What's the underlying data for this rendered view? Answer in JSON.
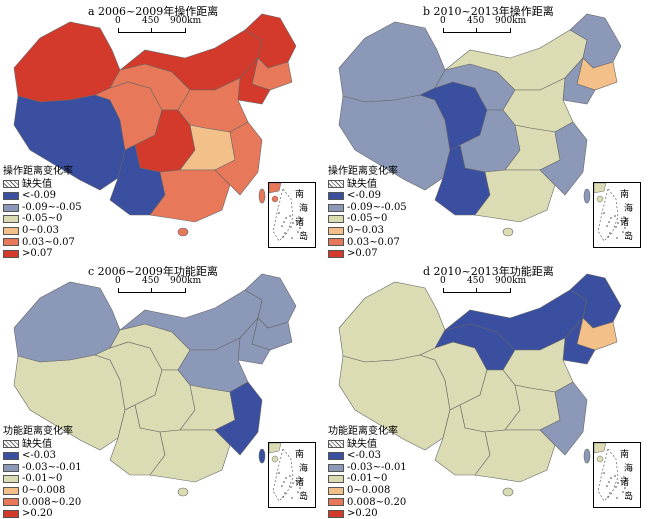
{
  "panels": [
    {
      "id": "a",
      "title": "a 2006~2009年操作距离",
      "legend_title": "操作距离变化率",
      "legend": [
        {
          "label": "缺失值",
          "color": "hatch"
        },
        {
          "label": "<-0.09",
          "color": "#3a4fa0"
        },
        {
          "label": "-0.09~-0.05",
          "color": "#8b98b8"
        },
        {
          "label": "-0.05~0",
          "color": "#dcdcb4"
        },
        {
          "label": "0~0.03",
          "color": "#f4c08a"
        },
        {
          "label": "0.03~0.07",
          "color": "#e8785a"
        },
        {
          "label": ">0.07",
          "color": "#d43a2c"
        }
      ]
    },
    {
      "id": "b",
      "title": "b 2010~2013年操作距离",
      "legend_title": "操作距离变化率",
      "legend": [
        {
          "label": "缺失值",
          "color": "hatch"
        },
        {
          "label": "<-0.09",
          "color": "#3a4fa0"
        },
        {
          "label": "-0.09~-0.05",
          "color": "#8b98b8"
        },
        {
          "label": "-0.05~0",
          "color": "#dcdcb4"
        },
        {
          "label": "0~0.03",
          "color": "#f4c08a"
        },
        {
          "label": "0.03~0.07",
          "color": "#e8785a"
        },
        {
          "label": ">0.07",
          "color": "#d43a2c"
        }
      ]
    },
    {
      "id": "c",
      "title": "c 2006~2009年功能距离",
      "legend_title": "功能距离变化率",
      "legend": [
        {
          "label": "缺失值",
          "color": "hatch"
        },
        {
          "label": "<-0.03",
          "color": "#3a4fa0"
        },
        {
          "label": "-0.03~-0.01",
          "color": "#8b98b8"
        },
        {
          "label": "-0.01~0",
          "color": "#dcdcb4"
        },
        {
          "label": "0~0.008",
          "color": "#f4c08a"
        },
        {
          "label": "0.008~0.20",
          "color": "#e8785a"
        },
        {
          "label": ">0.20",
          "color": "#d43a2c"
        }
      ]
    },
    {
      "id": "d",
      "title": "d 2010~2013年功能距离",
      "legend_title": "功能距离变化率",
      "legend": [
        {
          "label": "缺失值",
          "color": "hatch"
        },
        {
          "label": "<-0.03",
          "color": "#3a4fa0"
        },
        {
          "label": "-0.03~-0.01",
          "color": "#8b98b8"
        },
        {
          "label": "-0.01~0",
          "color": "#dcdcb4"
        },
        {
          "label": "0~0.008",
          "color": "#f4c08a"
        },
        {
          "label": "0.008~0.20",
          "color": "#e8785a"
        },
        {
          "label": ">0.20",
          "color": "#d43a2c"
        }
      ]
    }
  ],
  "scale": {
    "ticks": [
      "0",
      "450",
      "900km"
    ]
  },
  "inset": {
    "chars": [
      "南",
      "海",
      "诸",
      "岛"
    ]
  },
  "regions": {
    "a": {
      "xinjiang": "#d43a2c",
      "tibet": "#3a4fa0",
      "qinghai": "#e8785a",
      "gansu": "#e8785a",
      "inner_mongolia": "#d43a2c",
      "heilongjiang": "#d43a2c",
      "jilin": "#e8785a",
      "liaoning": "#d43a2c",
      "sichuan": "#d43a2c",
      "yunnan": "#3a4fa0",
      "north": "#e8785a",
      "central": "#f4c08a",
      "south": "#e8785a",
      "east": "#e8785a"
    },
    "b": {
      "xinjiang": "#8b98b8",
      "tibet": "#8b98b8",
      "qinghai": "#3a4fa0",
      "gansu": "#8b98b8",
      "inner_mongolia": "#dcdcb4",
      "heilongjiang": "#8b98b8",
      "jilin": "#f4c08a",
      "liaoning": "#8b98b8",
      "sichuan": "#8b98b8",
      "yunnan": "#3a4fa0",
      "north": "#dcdcb4",
      "central": "#dcdcb4",
      "south": "#dcdcb4",
      "east": "#8b98b8"
    },
    "c": {
      "xinjiang": "#8b98b8",
      "tibet": "#dcdcb4",
      "qinghai": "#dcdcb4",
      "gansu": "#dcdcb4",
      "inner_mongolia": "#8b98b8",
      "heilongjiang": "#8b98b8",
      "jilin": "#8b98b8",
      "liaoning": "#8b98b8",
      "sichuan": "#dcdcb4",
      "yunnan": "#dcdcb4",
      "north": "#8b98b8",
      "central": "#dcdcb4",
      "south": "#dcdcb4",
      "east": "#3a4fa0"
    },
    "d": {
      "xinjiang": "#dcdcb4",
      "tibet": "#dcdcb4",
      "qinghai": "#dcdcb4",
      "gansu": "#3a4fa0",
      "inner_mongolia": "#3a4fa0",
      "heilongjiang": "#3a4fa0",
      "jilin": "#f4c08a",
      "liaoning": "#3a4fa0",
      "sichuan": "#dcdcb4",
      "yunnan": "#dcdcb4",
      "north": "#dcdcb4",
      "central": "#dcdcb4",
      "south": "#dcdcb4",
      "east": "#8b98b8"
    }
  }
}
